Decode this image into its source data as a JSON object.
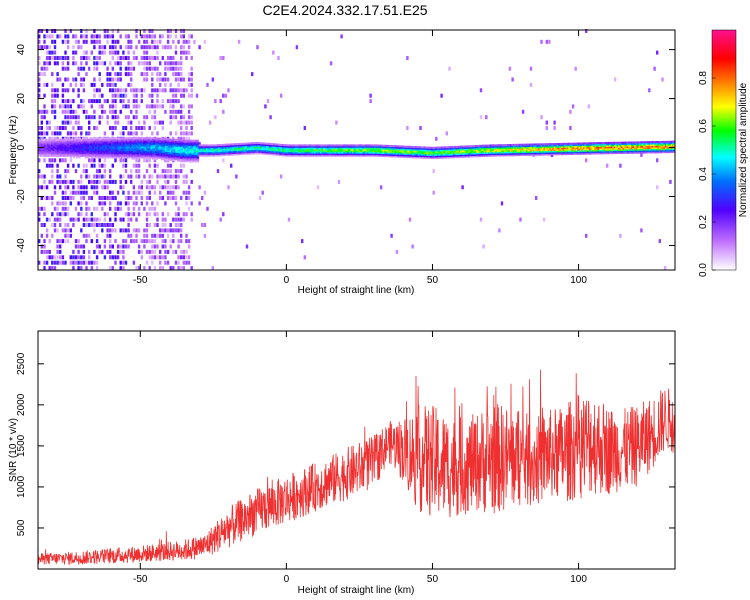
{
  "title": "C2E4.2024.332.17.51.E25",
  "chart_data": [
    {
      "type": "heatmap",
      "xlabel": "Height of straight line (km)",
      "ylabel": "Frequency (Hz)",
      "xlim": [
        -85,
        133
      ],
      "ylim": [
        -50,
        48
      ],
      "xticks": [
        -50,
        0,
        50,
        100
      ],
      "yticks": [
        -40,
        -20,
        0,
        20,
        40
      ],
      "colorbar": {
        "label": "Normalized spectral amplitude",
        "range": [
          0,
          1
        ],
        "ticks": [
          "0.0",
          "0.2",
          "0.4",
          "0.6",
          "0.8"
        ],
        "colors": [
          "#ffffff",
          "#c070ff",
          "#5000ff",
          "#0070ff",
          "#00ffff",
          "#00ff00",
          "#ffff00",
          "#ff8000",
          "#ff0000",
          "#ff1090"
        ]
      },
      "ridge": {
        "x": [
          -85,
          -60,
          -45,
          -35,
          -25,
          -10,
          0,
          30,
          50,
          70,
          90,
          110,
          133
        ],
        "freq": [
          0,
          0,
          0,
          -1,
          -1,
          0,
          -1,
          -1,
          -2,
          -1,
          -0.5,
          0,
          0.5
        ],
        "peak_amplitude": [
          0.2,
          0.35,
          0.45,
          0.5,
          0.55,
          0.55,
          0.6,
          0.7,
          0.65,
          0.75,
          0.85,
          0.9,
          0.9
        ]
      }
    },
    {
      "type": "line",
      "xlabel": "Height of straight line (km)",
      "ylabel": "SNR (10 * v/v)",
      "xlim": [
        -85,
        133
      ],
      "ylim": [
        0,
        2900
      ],
      "xticks": [
        -50,
        0,
        50,
        100
      ],
      "yticks": [
        500,
        1000,
        1500,
        2000,
        2500
      ],
      "color": "#f03030",
      "series": [
        {
          "x": [
            -85,
            -75,
            -65,
            -55,
            -45,
            -35,
            -28,
            -20,
            -10,
            0,
            10,
            20,
            30,
            35,
            40,
            45,
            50,
            55,
            60,
            65,
            70,
            75,
            80,
            85,
            90,
            95,
            100,
            105,
            110,
            115,
            120,
            125,
            130,
            133
          ],
          "mean": [
            120,
            130,
            150,
            170,
            200,
            230,
            280,
            500,
            700,
            850,
            1000,
            1150,
            1300,
            1550,
            1450,
            1350,
            1300,
            1250,
            1250,
            1300,
            1350,
            1350,
            1350,
            1300,
            1400,
            1400,
            1500,
            1550,
            1450,
            1450,
            1500,
            1650,
            1850,
            1750
          ],
          "spread": [
            70,
            80,
            90,
            100,
            110,
            130,
            150,
            250,
            280,
            300,
            300,
            320,
            330,
            250,
            400,
            650,
            700,
            650,
            600,
            600,
            700,
            650,
            600,
            550,
            550,
            600,
            650,
            650,
            550,
            500,
            500,
            450,
            400,
            350
          ]
        }
      ]
    }
  ]
}
